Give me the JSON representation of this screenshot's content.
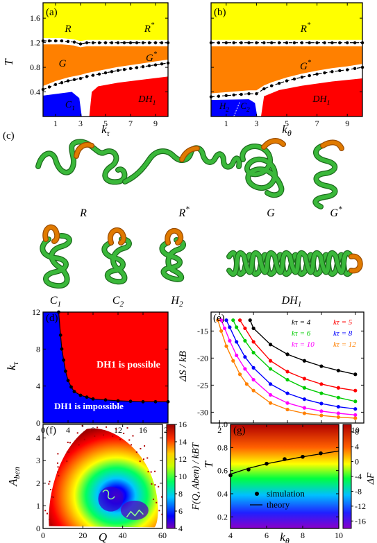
{
  "panel_labels": {
    "a": "(a)",
    "b": "(b)",
    "c": "(c)",
    "d": "(d)",
    "e": "(e)",
    "f": "(f)",
    "g": "(g)"
  },
  "colors": {
    "R": "#ffff00",
    "G": "#ff8000",
    "C": "#0000ff",
    "DH": "#ff0000",
    "ring": "#e07a00",
    "chain": "#3ab83a"
  },
  "chart_data": [
    {
      "id": "a",
      "type": "area",
      "xlabel": "kτ",
      "ylabel": "T",
      "xlim": [
        0,
        10
      ],
      "ylim": [
        0,
        1.85
      ],
      "xticks": [
        1,
        3,
        5,
        7,
        9
      ],
      "yticks": [
        0.4,
        0.8,
        1.2,
        1.6
      ],
      "region_labels": [
        "R",
        "R*",
        "G",
        "G*",
        "C1",
        "DH1"
      ],
      "upper_boundary": {
        "x": [
          0,
          0.5,
          1,
          1.5,
          2,
          2.5,
          3,
          3.5,
          4,
          5,
          6,
          7,
          8,
          9,
          10
        ],
        "y": [
          1.23,
          1.23,
          1.23,
          1.23,
          1.22,
          1.21,
          1.18,
          1.2,
          1.2,
          1.2,
          1.2,
          1.2,
          1.2,
          1.2,
          1.2
        ]
      },
      "lower_boundary": {
        "x": [
          0,
          0.5,
          1,
          1.5,
          2,
          2.5,
          3,
          3.5,
          4,
          5,
          6,
          7,
          8,
          9,
          10
        ],
        "y": [
          0.44,
          0.48,
          0.52,
          0.55,
          0.58,
          0.6,
          0.62,
          0.65,
          0.67,
          0.71,
          0.75,
          0.78,
          0.81,
          0.84,
          0.87
        ]
      }
    },
    {
      "id": "b",
      "type": "area",
      "xlabel": "kθ",
      "ylabel": "",
      "xlim": [
        0,
        10
      ],
      "ylim": [
        0,
        1.85
      ],
      "xticks": [
        1,
        3,
        5,
        7,
        9
      ],
      "yticks": [
        0.4,
        0.8,
        1.2,
        1.6
      ],
      "region_labels": [
        "R*",
        "G*",
        "H2",
        "C2",
        "DH1"
      ],
      "upper_boundary": {
        "x": [
          0,
          0.5,
          1,
          1.5,
          2,
          2.5,
          3,
          4,
          5,
          6,
          7,
          8,
          9,
          10
        ],
        "y": [
          1.2,
          1.2,
          1.2,
          1.2,
          1.2,
          1.2,
          1.2,
          1.2,
          1.2,
          1.2,
          1.2,
          1.2,
          1.2,
          1.2
        ]
      },
      "lower_boundary": {
        "x": [
          0,
          0.5,
          1,
          1.5,
          2,
          2.5,
          3,
          3.5,
          4,
          5,
          6,
          7,
          8,
          9,
          10
        ],
        "y": [
          0.32,
          0.33,
          0.34,
          0.35,
          0.36,
          0.37,
          0.37,
          0.45,
          0.5,
          0.58,
          0.64,
          0.69,
          0.73,
          0.76,
          0.8
        ]
      }
    },
    {
      "id": "d",
      "type": "area",
      "xlabel": "kθ",
      "ylabel": "kτ",
      "xlim": [
        0,
        20
      ],
      "ylim": [
        0,
        12
      ],
      "xticks": [
        0,
        4,
        8,
        12,
        16,
        20
      ],
      "yticks": [
        0,
        4,
        8,
        12
      ],
      "boundary": {
        "x": [
          2.5,
          2.8,
          3,
          3.3,
          3.6,
          4,
          4.5,
          5,
          6,
          7,
          8,
          10,
          12,
          14,
          16,
          18,
          20
        ],
        "y": [
          12,
          9.5,
          8,
          6.8,
          5.6,
          4.6,
          3.9,
          3.4,
          3.0,
          2.8,
          2.6,
          2.5,
          2.4,
          2.35,
          2.3,
          2.3,
          2.3
        ]
      },
      "region_texts": {
        "upper": "DH1 is possible",
        "lower": "DH1 is impossible"
      }
    },
    {
      "id": "e",
      "type": "line",
      "xlabel": "kθ",
      "ylabel": "ΔS / kB",
      "xlim": [
        1.5,
        10.5
      ],
      "ylim": [
        -32,
        -11.5
      ],
      "xticks": [
        2,
        4,
        6,
        8,
        10
      ],
      "yticks": [
        -30,
        -25,
        -20,
        -15
      ],
      "series": [
        {
          "name": "kτ = 4",
          "color": "#000000",
          "x": [
            3.8,
            4,
            5,
            6,
            7,
            8,
            9,
            10
          ],
          "y": [
            -13,
            -14.5,
            -17.5,
            -19.3,
            -20.5,
            -21.5,
            -22.3,
            -23
          ]
        },
        {
          "name": "kτ = 5",
          "color": "#ff0000",
          "x": [
            3.2,
            3.5,
            4,
            5,
            6,
            7,
            8,
            9,
            10
          ],
          "y": [
            -13,
            -14.5,
            -17,
            -20.5,
            -22.5,
            -23.8,
            -24.8,
            -25.5,
            -26
          ]
        },
        {
          "name": "kτ = 6",
          "color": "#00cc00",
          "x": [
            2.8,
            3,
            3.5,
            4,
            5,
            6,
            7,
            8,
            9,
            10
          ],
          "y": [
            -13,
            -14.3,
            -16.8,
            -19,
            -22,
            -24,
            -25.5,
            -26.5,
            -27.3,
            -28
          ]
        },
        {
          "name": "kτ = 8",
          "color": "#0000ff",
          "x": [
            2.4,
            2.6,
            3,
            3.5,
            4,
            5,
            6,
            7,
            8,
            9,
            10
          ],
          "y": [
            -13,
            -14.3,
            -17,
            -19.8,
            -21.8,
            -24.8,
            -26.5,
            -27.6,
            -28.4,
            -29,
            -29.4
          ]
        },
        {
          "name": "kτ = 10",
          "color": "#ff00ff",
          "x": [
            2.1,
            2.3,
            2.6,
            3,
            3.5,
            4,
            5,
            6,
            7,
            8,
            9,
            10
          ],
          "y": [
            -13,
            -14.5,
            -16.8,
            -19.5,
            -22,
            -24,
            -26.8,
            -28.3,
            -29.2,
            -29.8,
            -30.2,
            -30.5
          ]
        },
        {
          "name": "kτ = 12",
          "color": "#ff8000",
          "x": [
            1.9,
            2.1,
            2.4,
            2.8,
            3.2,
            3.6,
            4,
            5,
            6,
            7,
            8,
            9,
            10
          ],
          "y": [
            -13,
            -15,
            -17.8,
            -20.5,
            -23,
            -24.8,
            -26,
            -28.3,
            -29.5,
            -30.2,
            -30.6,
            -30.9,
            -31.1
          ]
        }
      ]
    },
    {
      "id": "f",
      "type": "heatmap",
      "xlabel": "Q",
      "ylabel": "Aben",
      "xlim": [
        0,
        60
      ],
      "ylim": [
        0,
        4.6
      ],
      "xticks": [
        0,
        20,
        40,
        60
      ],
      "yticks": [
        0,
        1,
        2,
        3,
        4
      ],
      "colorbar": {
        "label": "F(Q, Aben) / kBT",
        "min": 4,
        "max": 16,
        "ticks": [
          4,
          6,
          8,
          10,
          12,
          14,
          16
        ]
      }
    },
    {
      "id": "g",
      "type": "heatmap",
      "xlabel": "kθ",
      "ylabel": "T",
      "xlim": [
        4,
        10
      ],
      "ylim": [
        0.1,
        1.0
      ],
      "xticks": [
        4,
        6,
        8,
        10
      ],
      "yticks": [
        0.2,
        0.4,
        0.6,
        0.8,
        1.0
      ],
      "colorbar": {
        "label": "ΔF",
        "min": -18,
        "max": 10,
        "ticks": [
          -16,
          -12,
          -8,
          -4,
          0,
          4,
          8
        ]
      },
      "legend": [
        "simulation",
        "theory"
      ],
      "simulation": {
        "x": [
          4,
          5,
          6,
          7,
          8,
          9
        ],
        "y": [
          0.56,
          0.61,
          0.66,
          0.7,
          0.72,
          0.75
        ]
      },
      "theory": {
        "x": [
          4,
          5,
          6,
          7,
          8,
          9,
          10
        ],
        "y": [
          0.57,
          0.62,
          0.66,
          0.69,
          0.72,
          0.745,
          0.77
        ]
      }
    }
  ],
  "conformations": [
    {
      "label": "R"
    },
    {
      "label": "R*"
    },
    {
      "label": "G"
    },
    {
      "label": "G*"
    },
    {
      "label": "C1"
    },
    {
      "label": "C2"
    },
    {
      "label": "H2"
    },
    {
      "label": "DH1"
    }
  ]
}
